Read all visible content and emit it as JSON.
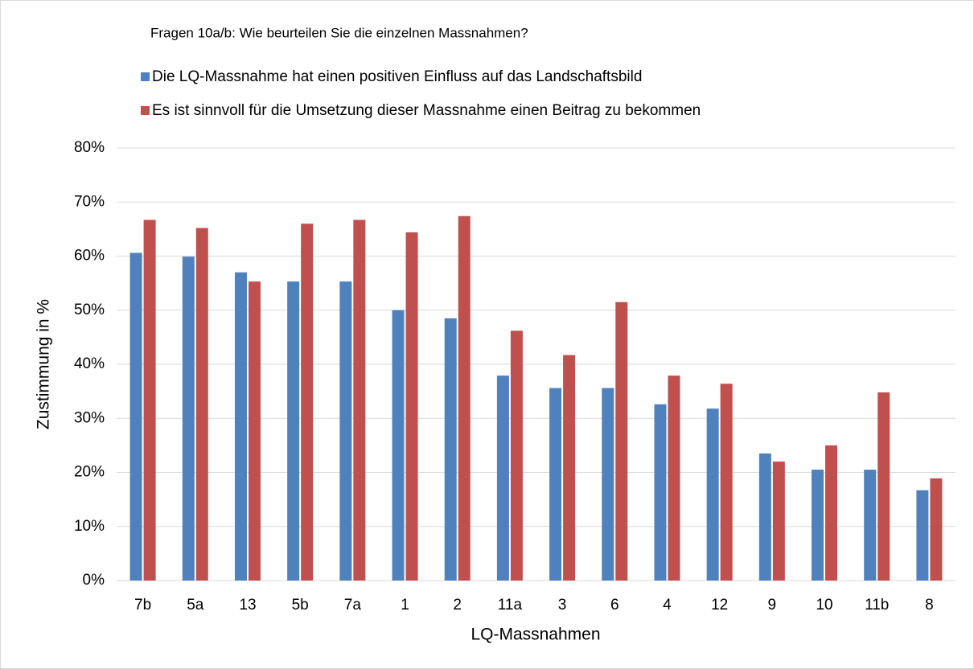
{
  "chart_data": {
    "type": "bar",
    "title": "Fragen 10a/b: Wie beurteilen Sie die einzelnen Massnahmen?",
    "x_label": "LQ-Massnahmen",
    "y_label": "Zustimmung in %",
    "categories": [
      "7b",
      "5a",
      "13",
      "5b",
      "7a",
      "1",
      "2",
      "11a",
      "3",
      "6",
      "4",
      "12",
      "9",
      "10",
      "11b",
      "8"
    ],
    "series": [
      {
        "name": "Die LQ-Massnahme hat einen positiven Einfluss auf das Landschaftsbild",
        "color": "#4f81bd",
        "values": [
          60.6,
          59.9,
          57,
          55.3,
          55.3,
          50,
          48.5,
          37.9,
          35.6,
          35.6,
          32.6,
          31.8,
          23.5,
          20.5,
          20.5,
          16.7
        ]
      },
      {
        "name": "Es ist sinnvoll für die Umsetzung dieser Massnahme einen Beitrag zu bekommen",
        "color": "#c0504d",
        "values": [
          66.7,
          65.2,
          55.3,
          66,
          66.7,
          64.4,
          67.4,
          46.2,
          41.7,
          51.5,
          37.9,
          36.4,
          22,
          25,
          34.8,
          18.9
        ]
      }
    ],
    "ylim": [
      0,
      80
    ],
    "yticks": [
      {
        "value": 0,
        "label": "0%"
      },
      {
        "value": 10,
        "label": "10%"
      },
      {
        "value": 20,
        "label": "20%"
      },
      {
        "value": 30,
        "label": "30%"
      },
      {
        "value": 40,
        "label": "40%"
      },
      {
        "value": 50,
        "label": "50%"
      },
      {
        "value": 60,
        "label": "60%"
      },
      {
        "value": 70,
        "label": "70%"
      },
      {
        "value": 80,
        "label": "80%"
      }
    ],
    "grid": true
  }
}
